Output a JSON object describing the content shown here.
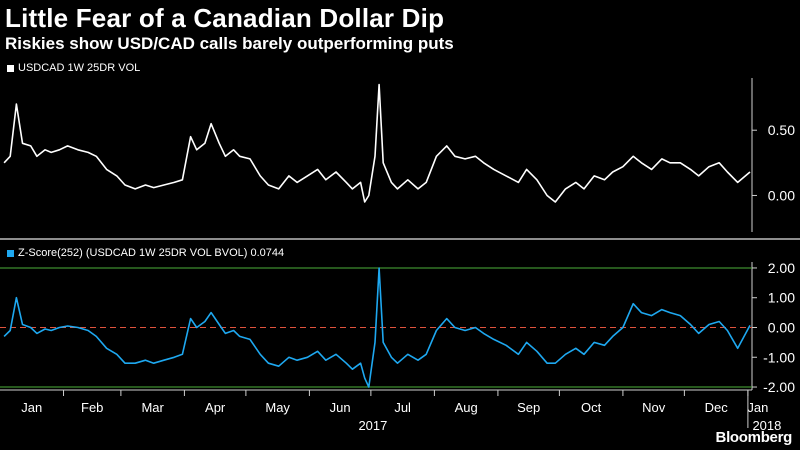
{
  "title": "Little Fear of a Canadian Dollar Dip",
  "subtitle": "Riskies show USD/CAD calls barely outperforming puts",
  "logo": "Bloomberg",
  "colors": {
    "background": "#000000",
    "series1": "#ffffff",
    "series2": "#1ea8f0",
    "band": "#4caf3a",
    "zero_line": "#e0533d"
  },
  "chart_data": [
    {
      "type": "line",
      "legend": "USDCAD 1W 25DR VOL",
      "ylim": [
        -0.28,
        0.9
      ],
      "yticks": [
        0.5,
        0.0
      ],
      "ytick_labels": [
        "0.50",
        "0.00"
      ],
      "grid": false,
      "x_domain": [
        "2017-01-01",
        "2018-01-03"
      ],
      "x_month_labels": [
        "Jan",
        "Feb",
        "Mar",
        "Apr",
        "May",
        "Jun",
        "Jul",
        "Aug",
        "Sep",
        "Oct",
        "Nov",
        "Dec",
        "Jan"
      ],
      "x_year_labels": [
        "2017",
        "2018"
      ],
      "series": [
        {
          "x": [
            "2017-01-03",
            "2017-01-06",
            "2017-01-09",
            "2017-01-12",
            "2017-01-16",
            "2017-01-19",
            "2017-01-23",
            "2017-01-26",
            "2017-01-30",
            "2017-02-03",
            "2017-02-08",
            "2017-02-13",
            "2017-02-17",
            "2017-02-22",
            "2017-02-27",
            "2017-03-03",
            "2017-03-08",
            "2017-03-13",
            "2017-03-17",
            "2017-03-22",
            "2017-03-27",
            "2017-03-31",
            "2017-04-04",
            "2017-04-07",
            "2017-04-11",
            "2017-04-14",
            "2017-04-18",
            "2017-04-21",
            "2017-04-25",
            "2017-04-28",
            "2017-05-03",
            "2017-05-08",
            "2017-05-12",
            "2017-05-17",
            "2017-05-22",
            "2017-05-26",
            "2017-05-31",
            "2017-06-05",
            "2017-06-09",
            "2017-06-14",
            "2017-06-19",
            "2017-06-22",
            "2017-06-26",
            "2017-06-28",
            "2017-06-30",
            "2017-07-03",
            "2017-07-05",
            "2017-07-07",
            "2017-07-11",
            "2017-07-14",
            "2017-07-19",
            "2017-07-24",
            "2017-07-28",
            "2017-08-02",
            "2017-08-07",
            "2017-08-11",
            "2017-08-16",
            "2017-08-21",
            "2017-08-25",
            "2017-08-30",
            "2017-09-05",
            "2017-09-11",
            "2017-09-15",
            "2017-09-20",
            "2017-09-25",
            "2017-09-29",
            "2017-10-04",
            "2017-10-09",
            "2017-10-13",
            "2017-10-18",
            "2017-10-23",
            "2017-10-27",
            "2017-11-01",
            "2017-11-06",
            "2017-11-10",
            "2017-11-15",
            "2017-11-20",
            "2017-11-24",
            "2017-11-29",
            "2017-12-04",
            "2017-12-08",
            "2017-12-13",
            "2017-12-18",
            "2017-12-22",
            "2017-12-27",
            "2018-01-02"
          ],
          "values": [
            0.25,
            0.3,
            0.7,
            0.4,
            0.38,
            0.3,
            0.35,
            0.33,
            0.35,
            0.38,
            0.35,
            0.33,
            0.3,
            0.2,
            0.15,
            0.08,
            0.05,
            0.08,
            0.06,
            0.08,
            0.1,
            0.12,
            0.45,
            0.35,
            0.4,
            0.55,
            0.4,
            0.3,
            0.35,
            0.3,
            0.28,
            0.15,
            0.08,
            0.05,
            0.15,
            0.1,
            0.15,
            0.2,
            0.12,
            0.18,
            0.1,
            0.05,
            0.1,
            -0.05,
            0.0,
            0.3,
            0.85,
            0.25,
            0.1,
            0.05,
            0.12,
            0.05,
            0.1,
            0.3,
            0.38,
            0.3,
            0.28,
            0.3,
            0.25,
            0.2,
            0.15,
            0.1,
            0.2,
            0.12,
            0.0,
            -0.05,
            0.05,
            0.1,
            0.05,
            0.15,
            0.12,
            0.18,
            0.22,
            0.3,
            0.25,
            0.2,
            0.28,
            0.25,
            0.25,
            0.2,
            0.15,
            0.22,
            0.25,
            0.18,
            0.1,
            0.18
          ]
        }
      ]
    },
    {
      "type": "line",
      "legend": "Z-Score(252) (USDCAD 1W 25DR VOL BVOL) 0.0744",
      "ylim": [
        -2.1,
        2.2
      ],
      "yticks": [
        2.0,
        1.0,
        0.0,
        -1.0,
        -2.0
      ],
      "ytick_labels": [
        "2.00",
        "1.00",
        "0.00",
        "-1.00",
        "-2.00"
      ],
      "reference_lines": [
        {
          "y": 2.0,
          "style": "solid",
          "color": "#4caf3a"
        },
        {
          "y": 0.0,
          "style": "dashed",
          "color": "#e0533d"
        },
        {
          "y": -2.0,
          "style": "solid",
          "color": "#4caf3a"
        }
      ],
      "grid": false,
      "series": [
        {
          "x": [
            "2017-01-03",
            "2017-01-06",
            "2017-01-09",
            "2017-01-12",
            "2017-01-16",
            "2017-01-19",
            "2017-01-23",
            "2017-01-26",
            "2017-01-30",
            "2017-02-03",
            "2017-02-08",
            "2017-02-13",
            "2017-02-17",
            "2017-02-22",
            "2017-02-27",
            "2017-03-03",
            "2017-03-08",
            "2017-03-13",
            "2017-03-17",
            "2017-03-22",
            "2017-03-27",
            "2017-03-31",
            "2017-04-04",
            "2017-04-07",
            "2017-04-11",
            "2017-04-14",
            "2017-04-18",
            "2017-04-21",
            "2017-04-25",
            "2017-04-28",
            "2017-05-03",
            "2017-05-08",
            "2017-05-12",
            "2017-05-17",
            "2017-05-22",
            "2017-05-26",
            "2017-05-31",
            "2017-06-05",
            "2017-06-09",
            "2017-06-14",
            "2017-06-19",
            "2017-06-22",
            "2017-06-26",
            "2017-06-28",
            "2017-06-30",
            "2017-07-03",
            "2017-07-05",
            "2017-07-07",
            "2017-07-11",
            "2017-07-14",
            "2017-07-19",
            "2017-07-24",
            "2017-07-28",
            "2017-08-02",
            "2017-08-07",
            "2017-08-11",
            "2017-08-16",
            "2017-08-21",
            "2017-08-25",
            "2017-08-30",
            "2017-09-05",
            "2017-09-11",
            "2017-09-15",
            "2017-09-20",
            "2017-09-25",
            "2017-09-29",
            "2017-10-04",
            "2017-10-09",
            "2017-10-13",
            "2017-10-18",
            "2017-10-23",
            "2017-10-27",
            "2017-11-01",
            "2017-11-06",
            "2017-11-10",
            "2017-11-15",
            "2017-11-20",
            "2017-11-24",
            "2017-11-29",
            "2017-12-04",
            "2017-12-08",
            "2017-12-13",
            "2017-12-18",
            "2017-12-22",
            "2017-12-27",
            "2018-01-02"
          ],
          "values": [
            -0.3,
            -0.1,
            1.0,
            0.1,
            0.0,
            -0.2,
            -0.05,
            -0.1,
            0.0,
            0.05,
            0.0,
            -0.1,
            -0.3,
            -0.7,
            -0.9,
            -1.2,
            -1.2,
            -1.1,
            -1.2,
            -1.1,
            -1.0,
            -0.9,
            0.3,
            0.0,
            0.2,
            0.5,
            0.1,
            -0.2,
            -0.1,
            -0.3,
            -0.4,
            -0.9,
            -1.2,
            -1.3,
            -1.0,
            -1.1,
            -1.0,
            -0.8,
            -1.1,
            -0.9,
            -1.2,
            -1.4,
            -1.2,
            -1.7,
            -2.0,
            -0.5,
            2.0,
            -0.5,
            -1.0,
            -1.2,
            -0.9,
            -1.1,
            -0.9,
            -0.1,
            0.3,
            0.0,
            -0.1,
            0.0,
            -0.2,
            -0.4,
            -0.6,
            -0.9,
            -0.5,
            -0.8,
            -1.2,
            -1.2,
            -0.9,
            -0.7,
            -0.9,
            -0.5,
            -0.6,
            -0.3,
            0.0,
            0.8,
            0.5,
            0.4,
            0.6,
            0.5,
            0.4,
            0.1,
            -0.2,
            0.1,
            0.2,
            -0.1,
            -0.7,
            0.07
          ]
        }
      ]
    }
  ]
}
